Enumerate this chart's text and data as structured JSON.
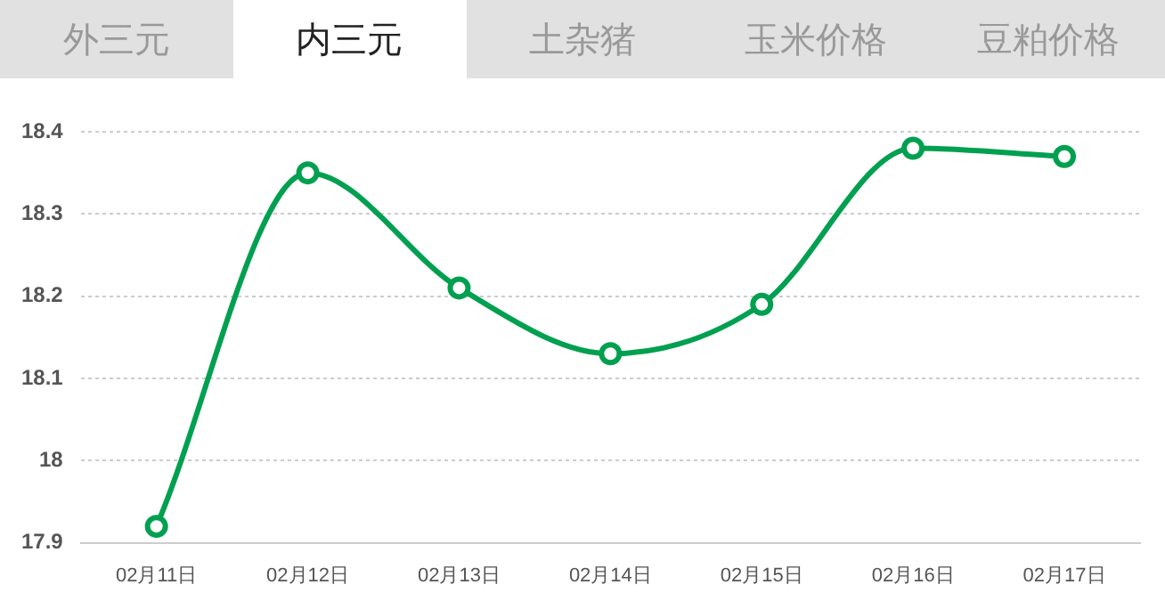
{
  "chart_data": {
    "type": "line",
    "title": "内三元",
    "annotations": [
      "外三元",
      "土杂猪",
      "玉米价格",
      "豆粕价格"
    ],
    "categories": [
      "02月11日",
      "02月12日",
      "02月13日",
      "02月14日",
      "02月15日",
      "02月16日",
      "02月17日"
    ],
    "series": [
      {
        "color": "#00a050",
        "values": [
          17.92,
          18.35,
          18.21,
          18.13,
          18.19,
          18.38,
          18.37
        ]
      }
    ],
    "ylim": [
      17.9,
      18.4
    ],
    "yticks": [
      17.9,
      18,
      18.1,
      18.2,
      18.3,
      18.4
    ],
    "grid": "y",
    "legend": false,
    "marker": "circle",
    "line_style": "solid"
  }
}
